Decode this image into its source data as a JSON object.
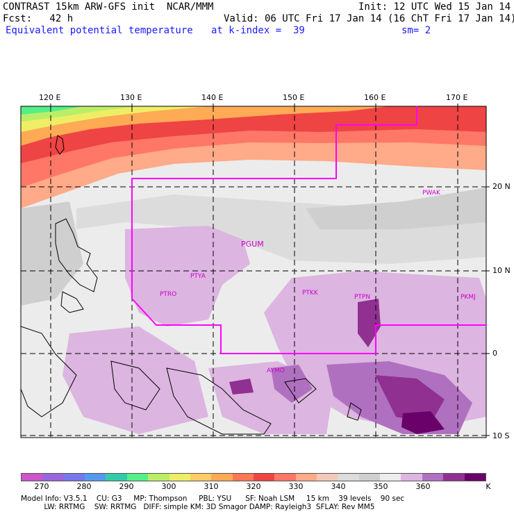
{
  "header": {
    "line1_left": "CONTRAST 15km ARW-GFS init  NCAR/MMM",
    "line1_right": "Init: 12 UTC Wed 15 Jan 14",
    "line2_left": "Fcst:   42 h",
    "line2_right": "Valid: 06 UTC Fri 17 Jan 14 (16 ChT Fri 17 Jan 14)",
    "field_name": "Equivalent potential temperature",
    "level": "at k-index =  39",
    "smoothing": "sm= 2"
  },
  "map": {
    "lon_labels": [
      "120 E",
      "130 E",
      "140 E",
      "150 E",
      "160 E",
      "170 E"
    ],
    "lat_labels": [
      "20 N",
      "10 N",
      "0",
      "10 S"
    ],
    "stations": [
      "PWAK",
      "PGUM",
      "PTYA",
      "PTRO",
      "PTKK",
      "PTPN",
      "PKMJ",
      "AYMO"
    ]
  },
  "legend": {
    "labels": [
      "270",
      "280",
      "290",
      "300",
      "310",
      "320",
      "330",
      "340",
      "350",
      "360",
      "K"
    ],
    "colors": [
      "#cc55cc",
      "#9966dd",
      "#7777ee",
      "#5599ee",
      "#33ccaa",
      "#55ee88",
      "#bbee66",
      "#eeee66",
      "#ffcc66",
      "#ffaa55",
      "#ff7755",
      "#ee4444",
      "#ff7766",
      "#ffaa88",
      "#f2c9b8",
      "#dcdcdc",
      "#cfcfcf",
      "#ececec",
      "#dcb5e0",
      "#b070c0",
      "#903090",
      "#6a006a"
    ]
  },
  "model_info": {
    "line1": "Model Info: V3.5.1    CU: G3     MP: Thompson     PBL: YSU      SF: Noah LSM     15 km    39 levels    90 sec",
    "line2": "          LW: RRTMG    SW: RRTMG   DIFF: simple KM: 3D Smagor DAMP: Rayleigh3  SFLAY: Rev MM5"
  }
}
